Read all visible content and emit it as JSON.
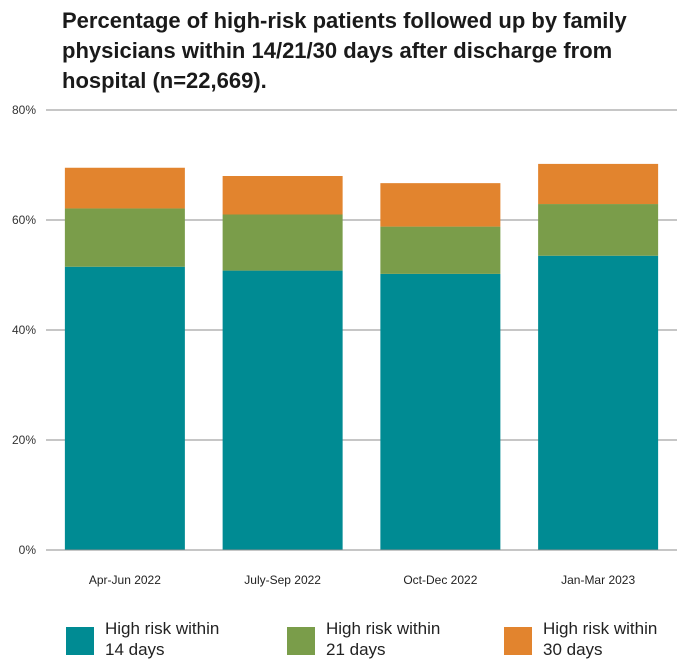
{
  "chart_data": {
    "type": "bar",
    "stacked": true,
    "title": "Percentage of high-risk patients followed up by family physicians within 14/21/30 days after discharge from hospital (n=22,669).",
    "categories": [
      "Apr-Jun 2022",
      "July-Sep 2022",
      "Oct-Dec 2022",
      "Jan-Mar 2023"
    ],
    "ylim": [
      0,
      80
    ],
    "yticks": [
      "0%",
      "20%",
      "40%",
      "60%",
      "80%"
    ],
    "grid": true,
    "legend_position": "bottom",
    "series": [
      {
        "name": "High risk within 14 days",
        "color": "#008b93",
        "values": [
          51.5,
          50.8,
          50.2,
          53.5
        ]
      },
      {
        "name": "High risk within 21 days",
        "color": "#7a9d4a",
        "values": [
          10.6,
          10.2,
          8.6,
          9.4
        ]
      },
      {
        "name": "High risk within 30 days",
        "color": "#e2842e",
        "values": [
          7.4,
          7.0,
          7.9,
          7.3
        ]
      }
    ]
  }
}
